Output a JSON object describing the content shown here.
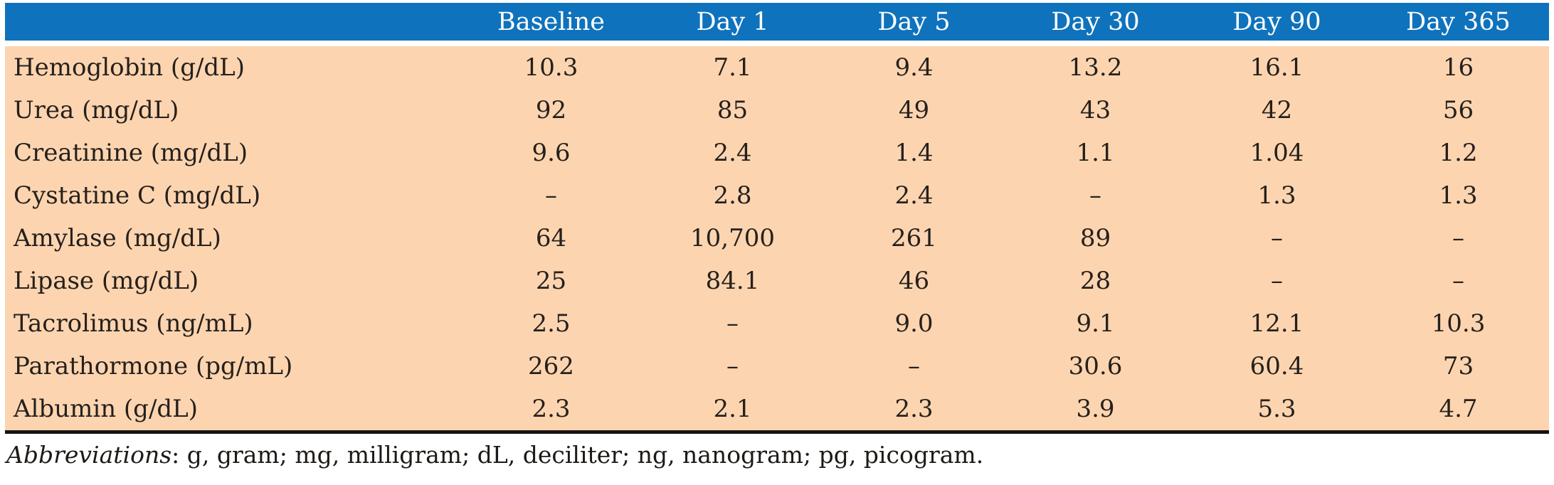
{
  "table": {
    "columns": [
      "",
      "Baseline",
      "Day 1",
      "Day 5",
      "Day 30",
      "Day 90",
      "Day 365"
    ],
    "rows": [
      {
        "label": "Hemoglobin (g/dL)",
        "values": [
          "10.3",
          "7.1",
          "9.4",
          "13.2",
          "16.1",
          "16"
        ]
      },
      {
        "label": "Urea (mg/dL)",
        "values": [
          "92",
          "85",
          "49",
          "43",
          "42",
          "56"
        ]
      },
      {
        "label": "Creatinine (mg/dL)",
        "values": [
          "9.6",
          "2.4",
          "1.4",
          "1.1",
          "1.04",
          "1.2"
        ]
      },
      {
        "label": "Cystatine C (mg/dL)",
        "values": [
          "–",
          "2.8",
          "2.4",
          "–",
          "1.3",
          "1.3"
        ]
      },
      {
        "label": "Amylase (mg/dL)",
        "values": [
          "64",
          "10,700",
          "261",
          "89",
          "–",
          "–"
        ]
      },
      {
        "label": "Lipase (mg/dL)",
        "values": [
          "25",
          "84.1",
          "46",
          "28",
          "–",
          "–"
        ]
      },
      {
        "label": "Tacrolimus (ng/mL)",
        "values": [
          "2.5",
          "–",
          "9.0",
          "9.1",
          "12.1",
          "10.3"
        ]
      },
      {
        "label": "Parathormone (pg/mL)",
        "values": [
          "262",
          "–",
          "–",
          "30.6",
          "60.4",
          "73"
        ]
      },
      {
        "label": "Albumin (g/dL)",
        "values": [
          "2.3",
          "2.1",
          "2.3",
          "3.9",
          "5.3",
          "4.7"
        ]
      }
    ]
  },
  "footer": {
    "abbreviations_label": "Abbreviations",
    "abbreviations_text": ": g, gram; mg, milligram; dL, deciliter; ng, nanogram; pg, picogram."
  },
  "colors": {
    "header_bg": "#0f72bc",
    "header_text": "#ffffff",
    "body_bg": "#fcd5b0",
    "body_text": "#26201c",
    "bottom_rule": "#191410"
  }
}
